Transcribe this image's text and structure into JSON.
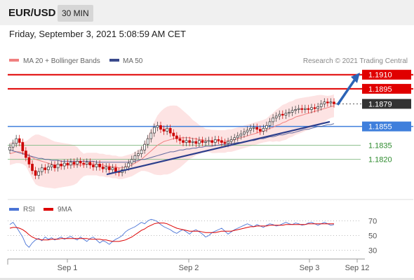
{
  "header": {
    "pair": "EUR/USD",
    "interval": "30 MIN",
    "datetime": "Friday, September 3, 2021 5:08:59 AM CET"
  },
  "legend": {
    "ma20": "MA 20 + Bollinger Bands",
    "ma50": "MA 50",
    "rsi": "RSI",
    "rsi_ma": "9MA",
    "credit": "Research © 2021 Trading Central"
  },
  "colors": {
    "resistance": "#e00000",
    "support": "#3f7fdc",
    "secondary_support": "#2e8b2e",
    "current": "#333333",
    "candle_up": "#333333",
    "candle_down": "#cc0000",
    "ma20": "#f08080",
    "ma50": "#3a4a8c",
    "bollinger_fill": "#fde0e0",
    "trend_line": "#2c3e8c",
    "arrow": "#2b63b6",
    "rsi_line": "#4a74d6",
    "rsi_ma_line": "#dd0000"
  },
  "chart_data": [
    {
      "type": "candlestick",
      "title": "EUR/USD 30 MIN",
      "x_tick_labels": [
        "Sep 1",
        "Sep 2",
        "Sep 3",
        "Sep 12"
      ],
      "ylim": [
        1.179,
        1.1915
      ],
      "levels": [
        {
          "label": "1.1910",
          "value": 1.191,
          "kind": "resistance"
        },
        {
          "label": "1.1895",
          "value": 1.1895,
          "kind": "resistance"
        },
        {
          "label": "1.1879",
          "value": 1.1879,
          "kind": "current"
        },
        {
          "label": "1.1855",
          "value": 1.1855,
          "kind": "support"
        },
        {
          "label": "1.1835",
          "value": 1.1835,
          "kind": "secondary_support"
        },
        {
          "label": "1.1820",
          "value": 1.182,
          "kind": "secondary_support"
        }
      ],
      "close": [
        1.1833,
        1.1837,
        1.1842,
        1.1838,
        1.1829,
        1.1822,
        1.1815,
        1.1808,
        1.1803,
        1.1807,
        1.1811,
        1.1809,
        1.1812,
        1.1814,
        1.1811,
        1.1815,
        1.1813,
        1.1816,
        1.1814,
        1.1817,
        1.1815,
        1.1818,
        1.1816,
        1.1815,
        1.1817,
        1.1814,
        1.1812,
        1.1815,
        1.1812,
        1.181,
        1.1812,
        1.1809,
        1.1811,
        1.1807,
        1.1806,
        1.1809,
        1.1812,
        1.1816,
        1.182,
        1.1824,
        1.1826,
        1.183,
        1.1836,
        1.1842,
        1.1848,
        1.1854,
        1.1856,
        1.1852,
        1.185,
        1.1853,
        1.1848,
        1.1845,
        1.1842,
        1.184,
        1.1838,
        1.184,
        1.1838,
        1.1839,
        1.1837,
        1.184,
        1.1838,
        1.1839,
        1.184,
        1.1838,
        1.1841,
        1.184,
        1.1838,
        1.1837,
        1.1839,
        1.1841,
        1.1843,
        1.1845,
        1.1847,
        1.1849,
        1.1851,
        1.1853,
        1.1854,
        1.1852,
        1.185,
        1.1853,
        1.1856,
        1.186,
        1.1864,
        1.1866,
        1.1868,
        1.1867,
        1.1869,
        1.187,
        1.1872,
        1.1873,
        1.1874,
        1.1873,
        1.1874,
        1.1873,
        1.1875,
        1.1874,
        1.1876,
        1.1879,
        1.1881,
        1.188,
        1.1881,
        1.1879
      ],
      "ma20": [
        1.1826,
        1.1827,
        1.1828,
        1.1828,
        1.1827,
        1.1826,
        1.1824,
        1.1822,
        1.182,
        1.1819,
        1.1818,
        1.1817,
        1.1816,
        1.1815,
        1.1814,
        1.1814,
        1.1814,
        1.1814,
        1.1814,
        1.1814,
        1.1814,
        1.1814,
        1.1814,
        1.1814,
        1.1815,
        1.1815,
        1.1815,
        1.1815,
        1.1814,
        1.1814,
        1.1813,
        1.1813,
        1.1812,
        1.1812,
        1.1811,
        1.1811,
        1.1812,
        1.1813,
        1.1814,
        1.1816,
        1.1818,
        1.182,
        1.1823,
        1.1826,
        1.1829,
        1.1832,
        1.1835,
        1.1837,
        1.1839,
        1.184,
        1.1841,
        1.1842,
        1.1843,
        1.1843,
        1.1843,
        1.1843,
        1.1843,
        1.1842,
        1.1842,
        1.1841,
        1.1841,
        1.184,
        1.184,
        1.1839,
        1.1839,
        1.1839,
        1.1839,
        1.1839,
        1.184,
        1.184,
        1.1841,
        1.1842,
        1.1843,
        1.1844,
        1.1845,
        1.1846,
        1.1847,
        1.1848,
        1.1849,
        1.185,
        1.1851,
        1.1853,
        1.1854,
        1.1856,
        1.1857,
        1.1859,
        1.186,
        1.1862,
        1.1863,
        1.1865,
        1.1866,
        1.1867,
        1.1868,
        1.1869,
        1.187,
        1.1871,
        1.1872,
        1.1873,
        1.1874,
        1.1875,
        1.1876,
        1.1877
      ],
      "ma50": [
        1.183,
        1.1829,
        1.1828,
        1.1827,
        1.1826,
        1.1825,
        1.1824,
        1.1823,
        1.1822,
        1.1821,
        1.1821,
        1.182,
        1.182,
        1.1819,
        1.1819,
        1.1819,
        1.1818,
        1.1818,
        1.1818,
        1.1818,
        1.1818,
        1.1818,
        1.1818,
        1.1818,
        1.1818,
        1.1818,
        1.1818,
        1.1817,
        1.1817,
        1.1817,
        1.1817,
        1.1817,
        1.1817,
        1.1817,
        1.1817,
        1.1817,
        1.1817,
        1.1817,
        1.1818,
        1.1818,
        1.1819,
        1.182,
        1.182,
        1.1821,
        1.1822,
        1.1823,
        1.1824,
        1.1825,
        1.1826,
        1.1827,
        1.1828,
        1.1828,
        1.1829,
        1.183,
        1.183,
        1.1831,
        1.1831,
        1.1832,
        1.1832,
        1.1833,
        1.1833,
        1.1834,
        1.1834,
        1.1834,
        1.1835,
        1.1835,
        1.1836,
        1.1836,
        1.1836,
        1.1837,
        1.1837,
        1.1838,
        1.1838,
        1.1839,
        1.1839,
        1.184,
        1.184,
        1.1841,
        1.1842,
        1.1842,
        1.1843,
        1.1844,
        1.1844,
        1.1845,
        1.1846,
        1.1846,
        1.1847,
        1.1848,
        1.1848,
        1.1849,
        1.185,
        1.1851,
        1.1852,
        1.1852,
        1.1853,
        1.1854,
        1.1855,
        1.1855,
        1.1856,
        1.1857,
        1.1857,
        1.1858
      ],
      "trend_line": [
        [
          1.1804,
          34
        ],
        [
          1.186,
          100
        ]
      ],
      "arrow": [
        [
          1.1878,
          100
        ],
        [
          1.191,
          105
        ]
      ]
    },
    {
      "type": "line",
      "title": "RSI",
      "ylim": [
        20,
        80
      ],
      "y_ticks": [
        70,
        50,
        30
      ],
      "series": [
        {
          "name": "RSI",
          "values": [
            65,
            68,
            62,
            55,
            48,
            38,
            34,
            40,
            44,
            46,
            43,
            48,
            45,
            47,
            44,
            46,
            48,
            45,
            47,
            49,
            46,
            44,
            48,
            45,
            42,
            46,
            48,
            44,
            40,
            43,
            41,
            38,
            42,
            45,
            47,
            50,
            55,
            58,
            60,
            62,
            65,
            68,
            66,
            70,
            72,
            71,
            69,
            65,
            62,
            60,
            58,
            55,
            53,
            56,
            58,
            55,
            52,
            56,
            58,
            55,
            52,
            48,
            50,
            54,
            56,
            58,
            60,
            56,
            52,
            55,
            58,
            60,
            62,
            64,
            66,
            64,
            62,
            65,
            63,
            61,
            64,
            66,
            65,
            63,
            64,
            66,
            68,
            66,
            65,
            67,
            66,
            64,
            65,
            67,
            68,
            66,
            64,
            66,
            68,
            66,
            64,
            65
          ]
        },
        {
          "name": "9MA",
          "values": [
            60,
            61,
            61,
            60,
            58,
            55,
            51,
            48,
            46,
            45,
            44,
            44,
            44,
            45,
            45,
            45,
            46,
            46,
            46,
            46,
            46,
            46,
            46,
            46,
            46,
            45,
            45,
            45,
            45,
            44,
            44,
            43,
            42,
            42,
            42,
            43,
            44,
            46,
            48,
            51,
            54,
            57,
            59,
            62,
            64,
            66,
            67,
            67,
            67,
            66,
            64,
            62,
            60,
            59,
            58,
            57,
            56,
            56,
            56,
            56,
            55,
            54,
            54,
            54,
            54,
            55,
            56,
            56,
            56,
            56,
            57,
            58,
            59,
            60,
            61,
            62,
            62,
            63,
            63,
            63,
            63,
            64,
            64,
            64,
            64,
            64,
            65,
            65,
            65,
            65,
            65,
            65,
            65,
            66,
            66,
            66,
            66,
            66,
            66,
            66,
            66,
            66
          ]
        }
      ]
    }
  ]
}
